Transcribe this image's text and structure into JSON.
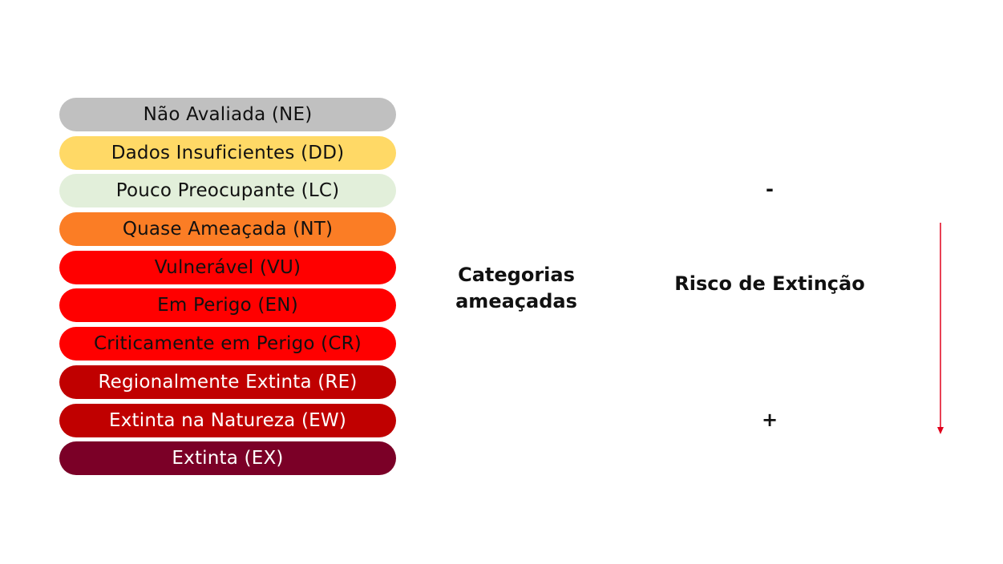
{
  "categories": [
    {
      "label": "Não Avaliada (NE)",
      "bg": "#c0c0c0",
      "color": "#111111"
    },
    {
      "label": "Dados Insuficientes (DD)",
      "bg": "#ffd966",
      "color": "#111111"
    },
    {
      "label": "Pouco Preocupante (LC)",
      "bg": "#e2efda",
      "color": "#111111"
    },
    {
      "label": "Quase Ameaçada (NT)",
      "bg": "#fb7d25",
      "color": "#111111"
    },
    {
      "label": "Vulnerável (VU)",
      "bg": "#ff0000",
      "color": "#111111"
    },
    {
      "label": "Em Perigo (EN)",
      "bg": "#ff0000",
      "color": "#111111"
    },
    {
      "label": "Criticamente em Perigo (CR)",
      "bg": "#ff0000",
      "color": "#111111"
    },
    {
      "label": "Regionalmente Extinta (RE)",
      "bg": "#c00000",
      "color": "#ffffff"
    },
    {
      "label": "Extinta na Natureza (EW)",
      "bg": "#c00000",
      "color": "#ffffff"
    },
    {
      "label": "Extinta (EX)",
      "bg": "#7b0027",
      "color": "#ffffff"
    }
  ],
  "threatened_label_line1": "Categorias",
  "threatened_label_line2": "ameaçadas",
  "risk": {
    "label": "Risco de Extinção",
    "low_marker": "-",
    "high_marker": "+",
    "arrow_color": "#e0001b"
  }
}
